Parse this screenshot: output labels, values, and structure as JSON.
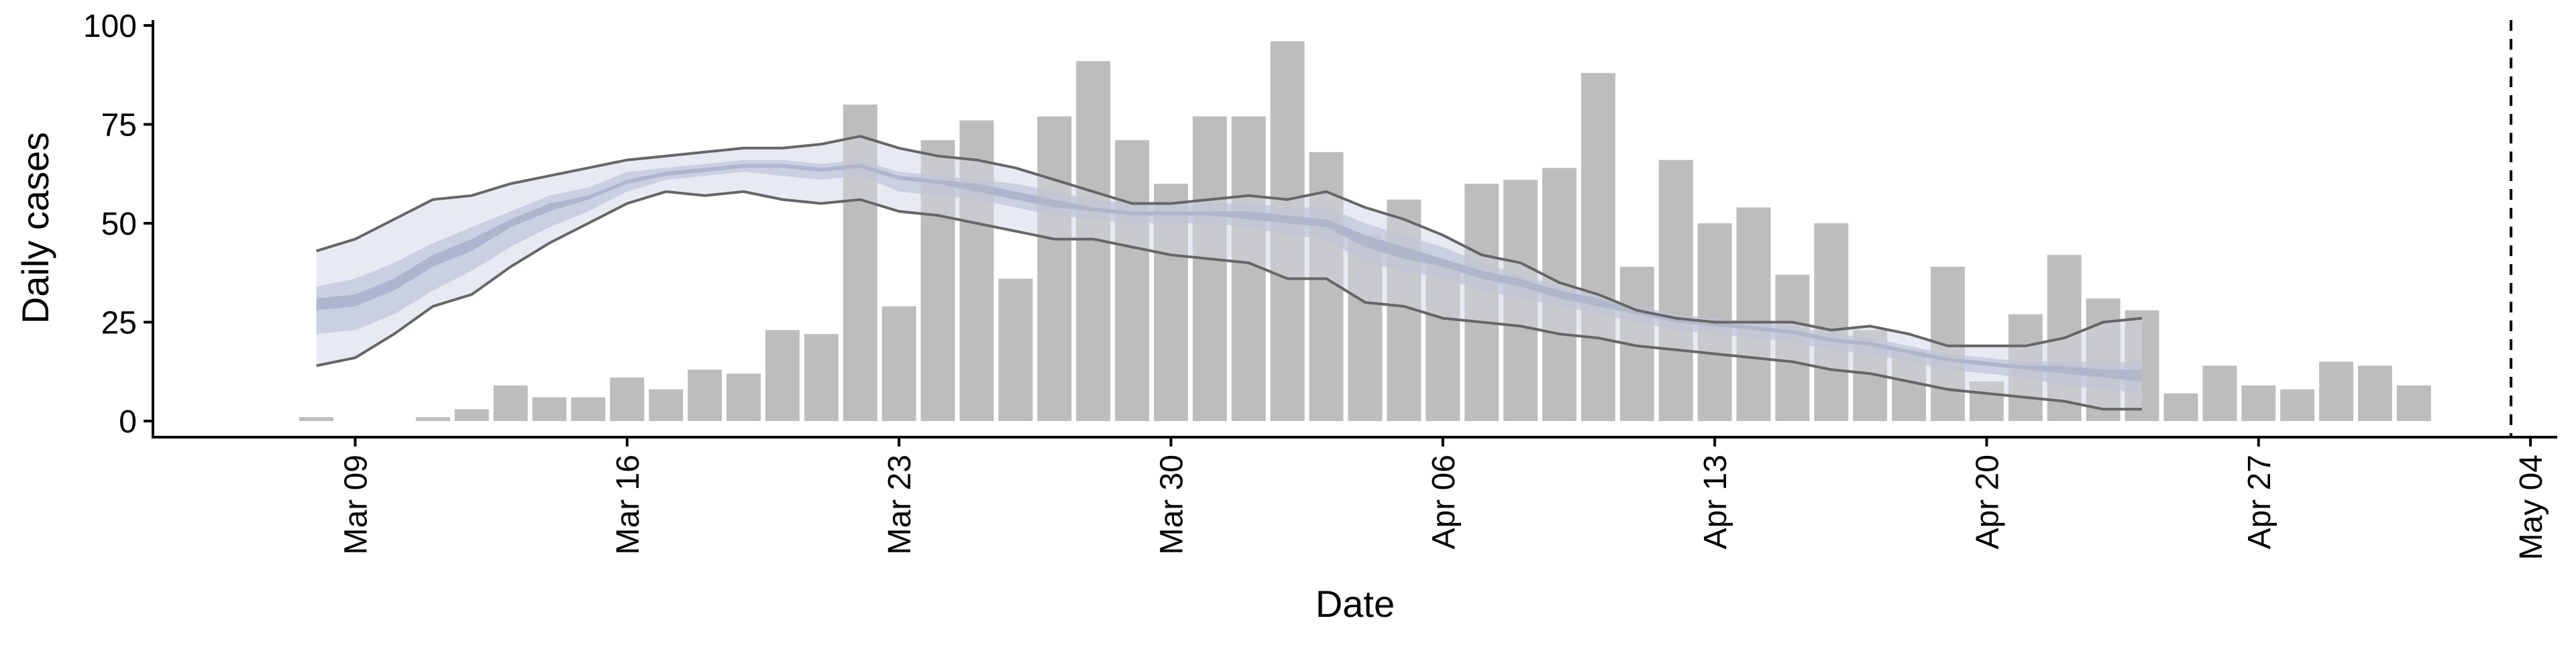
{
  "chart_data": {
    "type": "bar",
    "xlabel": "Date",
    "ylabel": "Daily cases",
    "ylim": [
      0,
      100
    ],
    "xlim": [
      "2020-03-04",
      "2020-05-05"
    ],
    "y_ticks": [
      {
        "value": 0,
        "label": "0"
      },
      {
        "value": 25,
        "label": "25"
      },
      {
        "value": 50,
        "label": "50"
      },
      {
        "value": 75,
        "label": "75"
      },
      {
        "value": 100,
        "label": "100"
      }
    ],
    "x_ticks": [
      {
        "date": "2020-03-09",
        "label": "Mar 09"
      },
      {
        "date": "2020-03-16",
        "label": "Mar 16"
      },
      {
        "date": "2020-03-23",
        "label": "Mar 23"
      },
      {
        "date": "2020-03-30",
        "label": "Mar 30"
      },
      {
        "date": "2020-04-06",
        "label": "Apr 06"
      },
      {
        "date": "2020-04-13",
        "label": "Apr 13"
      },
      {
        "date": "2020-04-20",
        "label": "Apr 20"
      },
      {
        "date": "2020-04-27",
        "label": "Apr 27"
      },
      {
        "date": "2020-05-04",
        "label": "May 04"
      }
    ],
    "grid": false,
    "bars": {
      "color": "#bdbdbd",
      "dates": [
        "2020-03-08",
        "2020-03-09",
        "2020-03-10",
        "2020-03-11",
        "2020-03-12",
        "2020-03-13",
        "2020-03-14",
        "2020-03-15",
        "2020-03-16",
        "2020-03-17",
        "2020-03-18",
        "2020-03-19",
        "2020-03-20",
        "2020-03-21",
        "2020-03-22",
        "2020-03-23",
        "2020-03-24",
        "2020-03-25",
        "2020-03-26",
        "2020-03-27",
        "2020-03-28",
        "2020-03-29",
        "2020-03-30",
        "2020-03-31",
        "2020-04-01",
        "2020-04-02",
        "2020-04-03",
        "2020-04-04",
        "2020-04-05",
        "2020-04-06",
        "2020-04-07",
        "2020-04-08",
        "2020-04-09",
        "2020-04-10",
        "2020-04-11",
        "2020-04-12",
        "2020-04-13",
        "2020-04-14",
        "2020-04-15",
        "2020-04-16",
        "2020-04-17",
        "2020-04-18",
        "2020-04-19",
        "2020-04-20",
        "2020-04-21",
        "2020-04-22",
        "2020-04-23",
        "2020-04-24",
        "2020-04-25",
        "2020-04-26",
        "2020-04-27",
        "2020-04-28",
        "2020-04-29",
        "2020-04-30",
        "2020-05-01",
        "2020-05-02",
        "2020-05-03"
      ],
      "values": [
        1,
        0,
        0,
        1,
        3,
        9,
        6,
        6,
        11,
        8,
        13,
        12,
        23,
        22,
        80,
        29,
        71,
        76,
        36,
        77,
        91,
        71,
        60,
        77,
        77,
        96,
        68,
        47,
        56,
        40,
        60,
        61,
        64,
        88,
        39,
        66,
        50,
        54,
        37,
        50,
        23,
        18,
        39,
        10,
        27,
        42,
        31,
        28,
        7,
        14,
        9,
        8,
        15,
        14,
        9,
        0,
        0
      ]
    },
    "estimate": {
      "dates": [
        "2020-03-08",
        "2020-03-09",
        "2020-03-10",
        "2020-03-11",
        "2020-03-12",
        "2020-03-13",
        "2020-03-14",
        "2020-03-15",
        "2020-03-16",
        "2020-03-17",
        "2020-03-18",
        "2020-03-19",
        "2020-03-20",
        "2020-03-21",
        "2020-03-22",
        "2020-03-23",
        "2020-03-24",
        "2020-03-25",
        "2020-03-26",
        "2020-03-27",
        "2020-03-28",
        "2020-03-29",
        "2020-03-30",
        "2020-03-31",
        "2020-04-01",
        "2020-04-02",
        "2020-04-03",
        "2020-04-04",
        "2020-04-05",
        "2020-04-06",
        "2020-04-07",
        "2020-04-08",
        "2020-04-09",
        "2020-04-10",
        "2020-04-11",
        "2020-04-12",
        "2020-04-13",
        "2020-04-14",
        "2020-04-15",
        "2020-04-16",
        "2020-04-17",
        "2020-04-18",
        "2020-04-19",
        "2020-04-20",
        "2020-04-21",
        "2020-04-22",
        "2020-04-23",
        "2020-04-24"
      ],
      "outer_band": {
        "lower": [
          14,
          16,
          22,
          29,
          32,
          39,
          45,
          50,
          55,
          58,
          57,
          58,
          56,
          55,
          56,
          53,
          52,
          50,
          48,
          46,
          46,
          44,
          42,
          41,
          40,
          36,
          36,
          30,
          29,
          26,
          25,
          24,
          22,
          21,
          19,
          18,
          17,
          16,
          15,
          13,
          12,
          10,
          8,
          7,
          6,
          5,
          3,
          3
        ],
        "upper": [
          43,
          46,
          51,
          56,
          57,
          60,
          62,
          64,
          66,
          67,
          68,
          69,
          69,
          70,
          72,
          69,
          67,
          66,
          64,
          61,
          58,
          55,
          55,
          56,
          57,
          56,
          58,
          54,
          51,
          47,
          42,
          40,
          35,
          32,
          28,
          26,
          25,
          25,
          25,
          23,
          24,
          22,
          19,
          19,
          19,
          21,
          25,
          26
        ]
      },
      "mid_band": {
        "lower": [
          22,
          23,
          27,
          33,
          38,
          44,
          49,
          53,
          58,
          61,
          62,
          63,
          62,
          61,
          62,
          58,
          57,
          56,
          54,
          52,
          51,
          50,
          50,
          50,
          49,
          47,
          46,
          40,
          38,
          36,
          33,
          31,
          29,
          27,
          25,
          23,
          22,
          21,
          20,
          18,
          17,
          15,
          13,
          12,
          11,
          9,
          8,
          7
        ],
        "upper": [
          34,
          36,
          40,
          45,
          49,
          53,
          57,
          59,
          63,
          64,
          65,
          66,
          66,
          65,
          66,
          63,
          62,
          61,
          60,
          58,
          56,
          55,
          55,
          55,
          55,
          54,
          54,
          50,
          47,
          44,
          40,
          37,
          34,
          32,
          29,
          27,
          26,
          25,
          24,
          22,
          21,
          19,
          17,
          16,
          15,
          15,
          15,
          15
        ]
      },
      "inner_band": {
        "lower": [
          28,
          29,
          33,
          39,
          43,
          49,
          53,
          56,
          60,
          62,
          63,
          64,
          64,
          63,
          64,
          61,
          60,
          58,
          56,
          54,
          53,
          52,
          52,
          52,
          51,
          50,
          49,
          44,
          41,
          39,
          36,
          34,
          31,
          29,
          27,
          25,
          24,
          23,
          22,
          20,
          19,
          17,
          15,
          14,
          13,
          12,
          11,
          10
        ],
        "upper": [
          31,
          32,
          36,
          42,
          46,
          51,
          55,
          57,
          61,
          63,
          64,
          65,
          65,
          64,
          65,
          62,
          61,
          60,
          58,
          56,
          54,
          53,
          53,
          53,
          53,
          52,
          51,
          47,
          44,
          41,
          38,
          36,
          33,
          31,
          28,
          26,
          25,
          24,
          23,
          21,
          20,
          18,
          16,
          15,
          14,
          14,
          13,
          13
        ]
      },
      "outer_band_color": "#dfe2ee",
      "mid_band_color": "#bcc3db",
      "inner_band_color": "#9aa3c2",
      "line_color": "#666666"
    },
    "reference_line": {
      "date": "2020-05-03",
      "style": "dashed"
    }
  }
}
